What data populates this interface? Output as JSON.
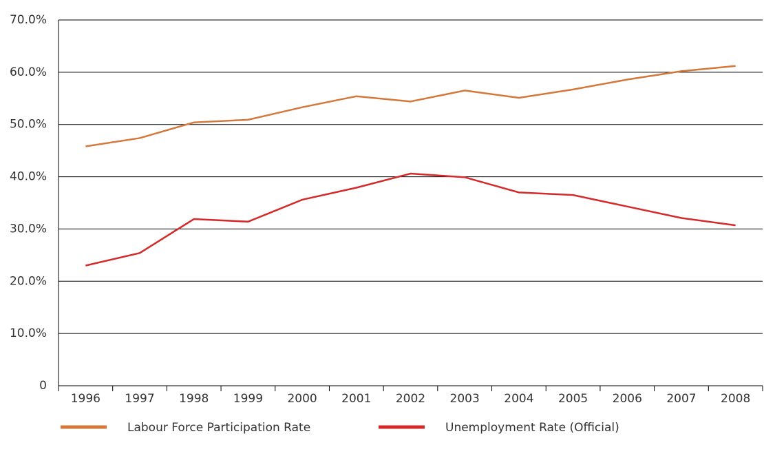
{
  "chart_data": {
    "type": "line",
    "categories": [
      "1996",
      "1997",
      "1998",
      "1999",
      "2000",
      "2001",
      "2002",
      "2003",
      "2004",
      "2005",
      "2006",
      "2007",
      "2008"
    ],
    "series": [
      {
        "name": "Labour Force Participation Rate",
        "color": "#d4773a",
        "values": [
          45.8,
          47.4,
          50.4,
          50.9,
          53.3,
          55.4,
          54.4,
          56.5,
          55.1,
          56.7,
          58.6,
          60.2,
          61.2
        ]
      },
      {
        "name": "Unemployment Rate (Official)",
        "color": "#d42a2a",
        "values": [
          23.0,
          25.4,
          31.9,
          31.4,
          35.6,
          37.9,
          40.6,
          39.9,
          37.0,
          36.5,
          34.3,
          32.1,
          30.7
        ]
      }
    ],
    "ylim": [
      0,
      70
    ],
    "yticks": [
      0,
      {
        "value": 10,
        "label": "10.0%"
      },
      {
        "value": 20,
        "label": "20.0%"
      },
      {
        "value": 30,
        "label": "30.0%"
      },
      {
        "value": 40,
        "label": "40.0%"
      },
      {
        "value": 50,
        "label": "50.0%"
      },
      {
        "value": 60,
        "label": "60.0%"
      },
      {
        "value": 70,
        "label": "70.0%"
      }
    ],
    "grid": true
  }
}
